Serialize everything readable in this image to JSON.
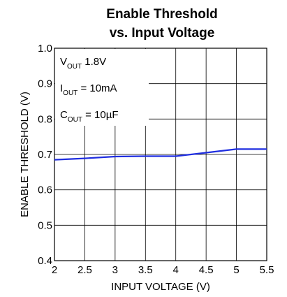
{
  "chart_data": {
    "type": "line",
    "title": [
      "Enable Threshold",
      "vs. Input Voltage"
    ],
    "xlabel": "INPUT VOLTAGE (V)",
    "ylabel": "ENABLE THRESHOLD (V)",
    "xlim": [
      2,
      5.5
    ],
    "ylim": [
      0.4,
      1.0
    ],
    "xticks": [
      "2",
      "2.5",
      "3",
      "3.5",
      "4",
      "4.5",
      "5",
      "5.5"
    ],
    "yticks": [
      "0.4",
      "0.5",
      "0.6",
      "0.7",
      "0.8",
      "0.9",
      "1.0"
    ],
    "grid": true,
    "series": [
      {
        "color": "#1f2ee0",
        "x": [
          2.0,
          2.5,
          3.0,
          3.5,
          4.0,
          4.5,
          5.0,
          5.5
        ],
        "y": [
          0.685,
          0.689,
          0.694,
          0.695,
          0.695,
          0.705,
          0.715,
          0.715
        ]
      }
    ],
    "conditions": [
      {
        "base": "V",
        "sub": "OUT",
        "rest": " 1.8V"
      },
      {
        "base": "I",
        "sub": "OUT",
        "rest": " = 10mA"
      },
      {
        "base": "C",
        "sub": "OUT",
        "rest": " = 10µF"
      }
    ]
  }
}
